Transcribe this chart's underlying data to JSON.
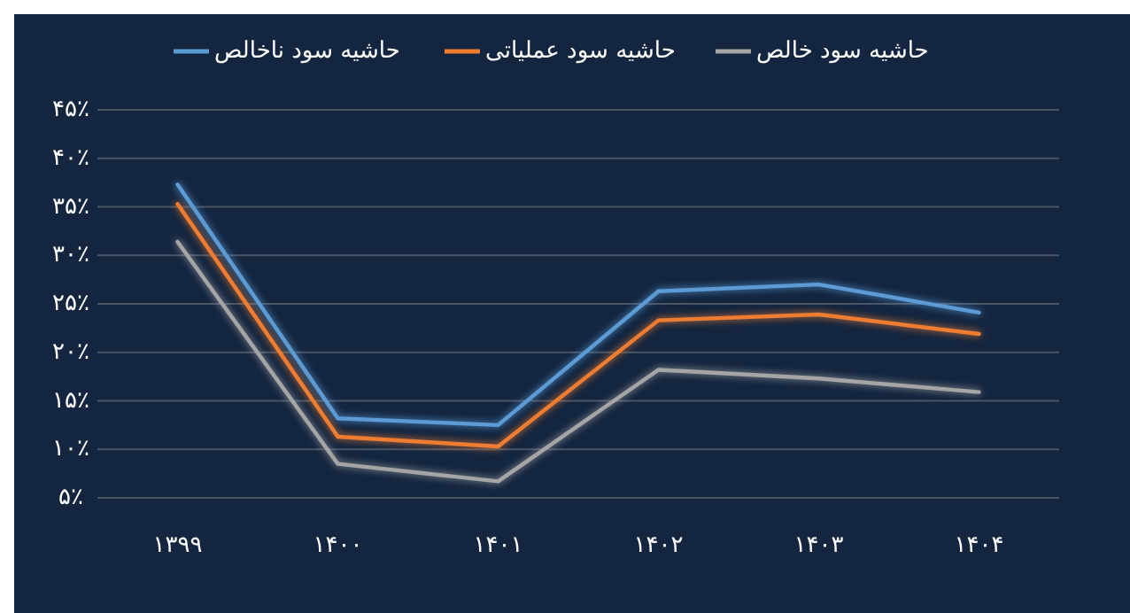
{
  "chart_data": {
    "type": "line",
    "categories": [
      "۱۳۹۹",
      "۱۴۰۰",
      "۱۴۰۱",
      "۱۴۰۲",
      "۱۴۰۳",
      "۱۴۰۴"
    ],
    "series": [
      {
        "name": "حاشیه سود ناخالص",
        "color": "#5b9bd5",
        "values": [
          37.3,
          13.2,
          12.5,
          26.3,
          27.0,
          24.1
        ]
      },
      {
        "name": "حاشیه سود عملیاتی",
        "color": "#ed7d31",
        "values": [
          35.3,
          11.3,
          10.3,
          23.3,
          23.9,
          21.9
        ]
      },
      {
        "name": "حاشیه سود خالص",
        "color": "#a5a5a5",
        "values": [
          31.4,
          8.5,
          6.7,
          18.2,
          17.3,
          15.9
        ]
      }
    ],
    "ylim": [
      5,
      45
    ],
    "yticks": [
      {
        "value": 5,
        "label": "۵٪"
      },
      {
        "value": 10,
        "label": "۱۰٪"
      },
      {
        "value": 15,
        "label": "۱۵٪"
      },
      {
        "value": 20,
        "label": "۲۰٪"
      },
      {
        "value": 25,
        "label": "۲۵٪"
      },
      {
        "value": 30,
        "label": "۳۰٪"
      },
      {
        "value": 35,
        "label": "۳۵٪"
      },
      {
        "value": 40,
        "label": "۴۰٪"
      },
      {
        "value": 45,
        "label": "۴۵٪"
      }
    ],
    "grid": "y",
    "legend": "top",
    "marker": "none",
    "line_style": "solid"
  }
}
